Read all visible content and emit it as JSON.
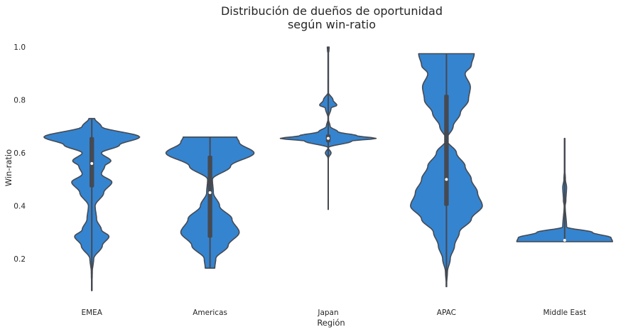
{
  "chart_data": {
    "type": "violin",
    "title_lines": [
      "Distribución de dueños de oportunidad",
      "según win-ratio"
    ],
    "xlabel": "Región",
    "ylabel": "Win-ratio",
    "ylim": [
      0.05,
      1.03
    ],
    "yticks": [
      0.2,
      0.4,
      0.6,
      0.8,
      1.0
    ],
    "ytick_labels": [
      "0.2",
      "0.4",
      "0.6",
      "0.8",
      "1.0"
    ],
    "grid": false,
    "colors": {
      "fill": "#3584d0",
      "edge": "#454a52",
      "box": "#454a52",
      "median": "#ffffff"
    },
    "categories": [
      "EMEA",
      "Americas",
      "Japan",
      "APAC",
      "Middle East"
    ],
    "violins": [
      {
        "category": "EMEA",
        "whisker": [
          0.08,
          0.73
        ],
        "quartiles": [
          0.47,
          0.66
        ],
        "median": 0.56,
        "profile": [
          [
            0.08,
            0.0
          ],
          [
            0.15,
            0.01
          ],
          [
            0.2,
            0.04
          ],
          [
            0.25,
            0.22
          ],
          [
            0.285,
            0.36
          ],
          [
            0.31,
            0.2
          ],
          [
            0.35,
            0.1
          ],
          [
            0.4,
            0.07
          ],
          [
            0.45,
            0.25
          ],
          [
            0.49,
            0.42
          ],
          [
            0.52,
            0.2
          ],
          [
            0.55,
            0.27
          ],
          [
            0.57,
            0.4
          ],
          [
            0.6,
            0.2
          ],
          [
            0.63,
            0.58
          ],
          [
            0.66,
            1.0
          ],
          [
            0.7,
            0.2
          ],
          [
            0.73,
            0.06
          ]
        ]
      },
      {
        "category": "Americas",
        "whisker": [
          0.165,
          0.66
        ],
        "quartiles": [
          0.28,
          0.59
        ],
        "median": 0.45,
        "profile": [
          [
            0.165,
            0.1
          ],
          [
            0.2,
            0.12
          ],
          [
            0.25,
            0.38
          ],
          [
            0.3,
            0.61
          ],
          [
            0.35,
            0.46
          ],
          [
            0.4,
            0.2
          ],
          [
            0.45,
            0.07
          ],
          [
            0.5,
            0.05
          ],
          [
            0.55,
            0.43
          ],
          [
            0.6,
            0.92
          ],
          [
            0.64,
            0.61
          ],
          [
            0.66,
            0.56
          ]
        ]
      },
      {
        "category": "Japan",
        "whisker": [
          0.385,
          1.0
        ],
        "quartiles": [
          0.64,
          0.67
        ],
        "median": 0.655,
        "profile": [
          [
            0.58,
            0.0
          ],
          [
            0.6,
            0.06
          ],
          [
            0.62,
            0.0
          ],
          [
            0.645,
            0.49
          ],
          [
            0.655,
            1.0
          ],
          [
            0.665,
            0.6
          ],
          [
            0.68,
            0.2
          ],
          [
            0.7,
            0.04
          ],
          [
            0.73,
            0.0
          ],
          [
            0.77,
            0.06
          ],
          [
            0.78,
            0.18
          ],
          [
            0.8,
            0.1
          ],
          [
            0.83,
            0.0
          ],
          [
            0.975,
            0.0
          ],
          [
            0.985,
            0.015
          ],
          [
            1.0,
            0.02
          ]
        ]
      },
      {
        "category": "APAC",
        "whisker": [
          0.095,
          0.975
        ],
        "quartiles": [
          0.4,
          0.82
        ],
        "median": 0.5,
        "profile": [
          [
            0.095,
            0.0
          ],
          [
            0.15,
            0.02
          ],
          [
            0.2,
            0.08
          ],
          [
            0.25,
            0.17
          ],
          [
            0.3,
            0.27
          ],
          [
            0.35,
            0.52
          ],
          [
            0.4,
            0.75
          ],
          [
            0.45,
            0.65
          ],
          [
            0.5,
            0.52
          ],
          [
            0.55,
            0.39
          ],
          [
            0.6,
            0.21
          ],
          [
            0.65,
            0.0
          ],
          [
            0.7,
            0.14
          ],
          [
            0.75,
            0.29
          ],
          [
            0.8,
            0.46
          ],
          [
            0.85,
            0.5
          ],
          [
            0.9,
            0.39
          ],
          [
            0.93,
            0.52
          ],
          [
            0.975,
            0.58
          ]
        ]
      },
      {
        "category": "Middle East",
        "whisker": [
          0.27,
          0.655
        ],
        "quartiles": [
          0.27,
          0.27
        ],
        "median": 0.27,
        "profile": [
          [
            0.265,
            1.0
          ],
          [
            0.28,
            0.97
          ],
          [
            0.3,
            0.58
          ],
          [
            0.32,
            0.04
          ],
          [
            0.4,
            0.01
          ],
          [
            0.42,
            0.025
          ],
          [
            0.47,
            0.04
          ],
          [
            0.5,
            0.015
          ],
          [
            0.55,
            0.0
          ],
          [
            0.6,
            0.0
          ],
          [
            0.655,
            0.0
          ]
        ]
      }
    ]
  }
}
